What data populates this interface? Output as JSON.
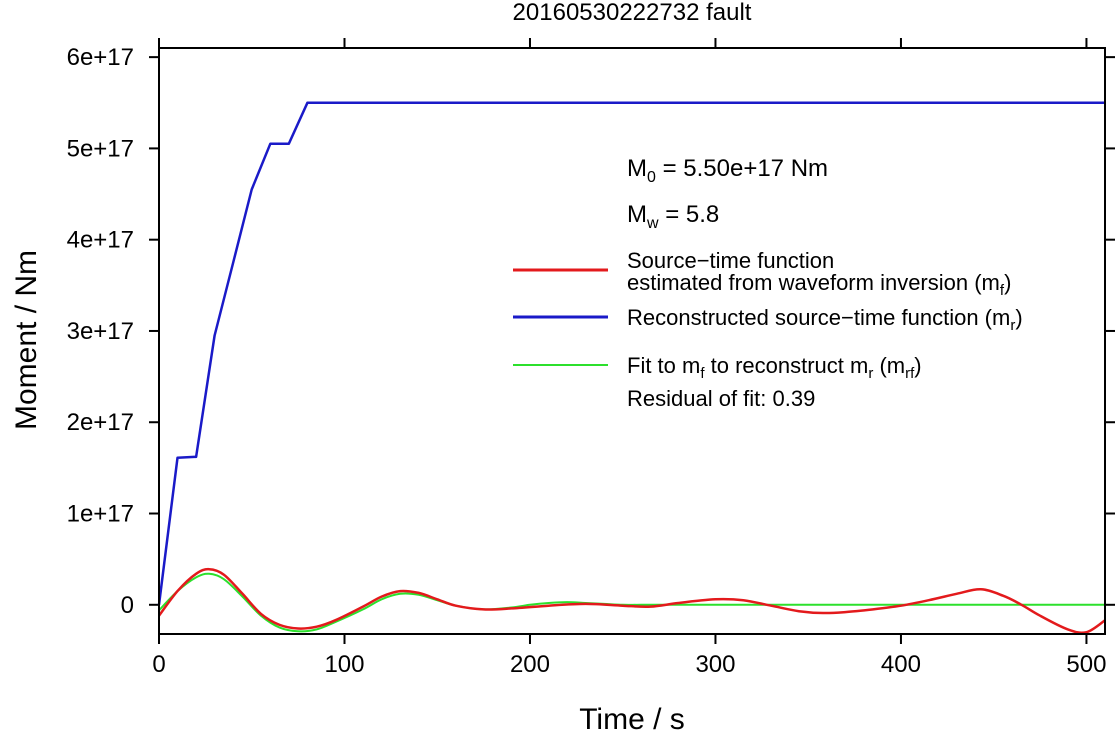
{
  "chart_data": {
    "type": "line",
    "title": "20160530222732 fault",
    "xlabel": "Time / s",
    "ylabel": "Moment / Nm",
    "xlim": [
      0,
      510
    ],
    "ylim": [
      -3.2e+16,
      6.1e+17
    ],
    "xticks": [
      {
        "value": 0,
        "label": "0"
      },
      {
        "value": 100,
        "label": "100"
      },
      {
        "value": 200,
        "label": "200"
      },
      {
        "value": 300,
        "label": "300"
      },
      {
        "value": 400,
        "label": "400"
      },
      {
        "value": 500,
        "label": "500"
      }
    ],
    "yticks": [
      {
        "value": 0,
        "label": "0"
      },
      {
        "value": 1e+17,
        "label": "1e+17"
      },
      {
        "value": 2e+17,
        "label": "2e+17"
      },
      {
        "value": 3e+17,
        "label": "3e+17"
      },
      {
        "value": 4e+17,
        "label": "4e+17"
      },
      {
        "value": 5e+17,
        "label": "5e+17"
      },
      {
        "value": 6e+17,
        "label": "6e+17"
      }
    ],
    "grid": false,
    "legend_position": "right-center",
    "series": [
      {
        "key": "mf",
        "name": "Source−time function estimated from waveform inversion (mf)",
        "color": "#e31a1c",
        "x": [
          0,
          10,
          20,
          27,
          35,
          45,
          55,
          65,
          75,
          85,
          95,
          110,
          120,
          130,
          140,
          150,
          160,
          175,
          190,
          210,
          230,
          250,
          265,
          280,
          300,
          315,
          330,
          345,
          358,
          370,
          385,
          400,
          415,
          430,
          443,
          455,
          465,
          475,
          490,
          500,
          510
        ],
        "y": [
          -1.2e+16,
          1.5e+16,
          3.4e+16,
          3.9e+16,
          3.3e+16,
          1.2e+16,
          -1e+16,
          -2.2e+16,
          -2.6e+16,
          -2.4e+16,
          -1.7e+16,
          -2000000000000000.0,
          9000000000000000.0,
          1.5e+16,
          1.3e+16,
          6000000000000000.0,
          -1000000000000000.0,
          -5000000000000000.0,
          -4000000000000000.0,
          -1000000000000000.0,
          1000000000000000.0,
          -1000000000000000.0,
          -2000000000000000.0,
          2000000000000000.0,
          6000000000000000.0,
          5000000000000000.0,
          -1000000000000000.0,
          -7000000000000000.0,
          -9000000000000000.0,
          -8000000000000000.0,
          -5000000000000000.0,
          -1000000000000000.0,
          5000000000000000.0,
          1.2e+16,
          1.7e+16,
          1e+16,
          0,
          -1.2e+16,
          -2.7e+16,
          -3e+16,
          -1.7e+16
        ]
      },
      {
        "key": "mr",
        "name": "Reconstructed source−time function (mr)",
        "color": "#1a1ac8",
        "x": [
          0,
          10,
          19,
          20,
          30,
          40,
          50,
          60,
          70,
          80,
          90,
          510
        ],
        "y": [
          0,
          1.61e+17,
          1.62e+17,
          1.62e+17,
          2.95e+17,
          3.75e+17,
          4.55e+17,
          5.05e+17,
          5.05e+17,
          5.5e+17,
          5.5e+17,
          5.5e+17
        ]
      },
      {
        "key": "mrf",
        "name": "Fit to mf to reconstruct mr (mrf)",
        "color": "#2ce02c",
        "x": [
          0,
          10,
          20,
          27,
          35,
          45,
          55,
          65,
          75,
          85,
          95,
          110,
          120,
          130,
          140,
          150,
          160,
          175,
          190,
          200,
          210,
          220,
          230,
          240,
          250,
          260,
          280,
          300,
          320,
          340,
          360,
          380,
          400,
          420,
          440,
          460,
          480,
          500,
          510
        ],
        "y": [
          -6000000000000000.0,
          1.5e+16,
          3e+16,
          3.4e+16,
          2.8e+16,
          9000000000000000.0,
          -1.2e+16,
          -2.5e+16,
          -2.9e+16,
          -2.7e+16,
          -1.9e+16,
          -5000000000000000.0,
          6000000000000000.0,
          1.2e+16,
          1.1e+16,
          5000000000000000.0,
          -1000000000000000.0,
          -5000000000000000.0,
          -3000000000000000.0,
          0,
          2000000000000000.0,
          3000000000000000.0,
          2000000000000000.0,
          1000000000000000.0,
          0,
          0,
          0,
          0,
          0,
          0,
          0,
          0,
          0,
          0,
          0,
          0,
          0,
          0,
          0
        ]
      }
    ],
    "annotations": {
      "m0_prefix": "M",
      "m0_sub": "0",
      "m0_value": " = 5.50e+17 Nm",
      "mw_prefix": "M",
      "mw_sub": "w",
      "mw_value": " = 5.8",
      "legend_red_line1": "Source−time function",
      "legend_red_line2": "estimated from waveform inversion (m",
      "legend_red_sub": "f",
      "legend_red_end": ")",
      "legend_blue_text": "Reconstructed source−time function (m",
      "legend_blue_sub": "r",
      "legend_blue_end": ")",
      "legend_green_a": "Fit to m",
      "legend_green_sub1": "f",
      "legend_green_b": " to reconstruct m",
      "legend_green_sub2": "r",
      "legend_green_c": " (m",
      "legend_green_sub3": "rf",
      "legend_green_end": ")",
      "residual": "Residual of fit: 0.39"
    }
  }
}
